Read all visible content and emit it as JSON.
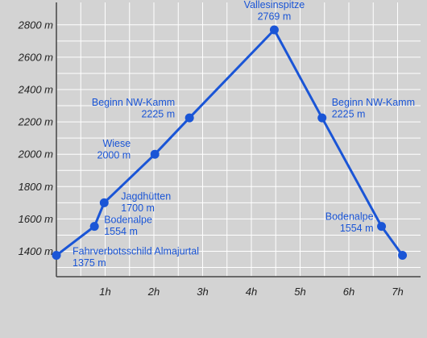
{
  "chart_data": {
    "type": "line",
    "title": "",
    "xlabel": "",
    "ylabel": "",
    "xlim": [
      0,
      7.5
    ],
    "ylim": [
      1300,
      2880
    ],
    "grid": true,
    "x_unit_ticks": [
      {
        "value": 1,
        "label": "1h"
      },
      {
        "value": 2,
        "label": "2h"
      },
      {
        "value": 3,
        "label": "3h"
      },
      {
        "value": 4,
        "label": "4h"
      },
      {
        "value": 5,
        "label": "5h"
      },
      {
        "value": 6,
        "label": "6h"
      },
      {
        "value": 7,
        "label": "7h"
      }
    ],
    "y_unit_ticks": [
      {
        "value": 1400,
        "label": "1400 m"
      },
      {
        "value": 1600,
        "label": "1600 m"
      },
      {
        "value": 1800,
        "label": "1800 m"
      },
      {
        "value": 2000,
        "label": "2000 m"
      },
      {
        "value": 2200,
        "label": "2200 m"
      },
      {
        "value": 2400,
        "label": "2400 m"
      },
      {
        "value": 2600,
        "label": "2600 m"
      },
      {
        "value": 2800,
        "label": "2800 m"
      }
    ],
    "series": [
      {
        "color": "#1a55d6",
        "points": [
          {
            "x": 0.0,
            "y": 1375,
            "name": "Fahrverbotsschild Almajurtal",
            "alt": "1375 m"
          },
          {
            "x": 0.78,
            "y": 1554,
            "name": "Bodenalpe",
            "alt": "1554 m"
          },
          {
            "x": 0.98,
            "y": 1700,
            "name": "Jagdhütten",
            "alt": "1700 m"
          },
          {
            "x": 2.02,
            "y": 2000,
            "name": "Wiese",
            "alt": "2000 m"
          },
          {
            "x": 2.73,
            "y": 2225,
            "name": "Beginn NW-Kamm",
            "alt": "2225 m"
          },
          {
            "x": 4.47,
            "y": 2769,
            "name": "Vallesinspitze",
            "alt": "2769 m"
          },
          {
            "x": 5.45,
            "y": 2225,
            "name": "Beginn NW-Kamm",
            "alt": "2225 m"
          },
          {
            "x": 6.67,
            "y": 1554,
            "name": "Bodenalpe",
            "alt": "1554 m"
          },
          {
            "x": 7.1,
            "y": 1375,
            "name": "",
            "alt": ""
          }
        ]
      }
    ]
  },
  "colors": {
    "background": "#d3d3d3",
    "grid": "#ffffff",
    "axis": "#444444",
    "series": "#1a55d6"
  }
}
